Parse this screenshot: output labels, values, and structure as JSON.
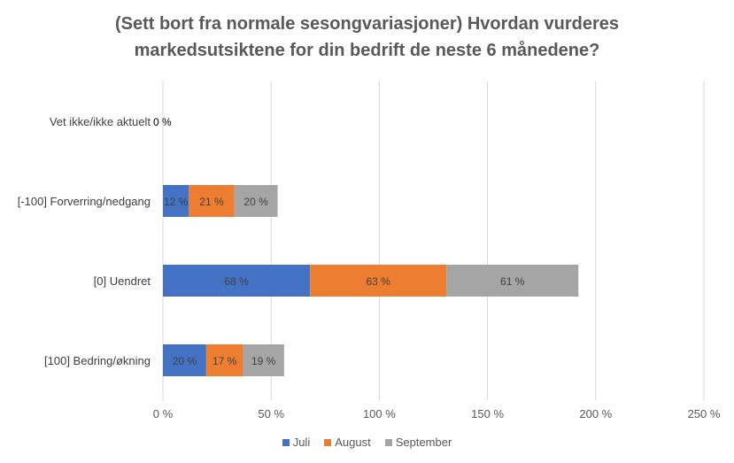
{
  "chart_data": {
    "type": "bar",
    "orientation": "horizontal",
    "stacked": true,
    "title_lines": [
      "(Sett bort fra normale sesongvariasjoner) Hvordan vurderes",
      "markedsutsiktene for din bedrift de neste 6 månedene?"
    ],
    "categories": [
      "Vet ikke/ikke aktuelt",
      "[-100] Forverring/nedgang",
      "[0] Uendret",
      "[100] Bedring/økning"
    ],
    "series": [
      {
        "name": "Juli",
        "color": "#4472C4",
        "values": [
          0,
          12,
          68,
          20
        ],
        "labels": [
          "0 %",
          "12 %",
          "68 %",
          "20 %"
        ]
      },
      {
        "name": "August",
        "color": "#ED7D31",
        "values": [
          0,
          21,
          63,
          17
        ],
        "labels": [
          "",
          "21 %",
          "63 %",
          "17 %"
        ]
      },
      {
        "name": "September",
        "color": "#A5A5A5",
        "values": [
          0,
          20,
          61,
          19
        ],
        "labels": [
          "",
          "20 %",
          "61 %",
          "19 %"
        ]
      }
    ],
    "xlim": [
      0,
      250
    ],
    "xticks": [
      0,
      50,
      100,
      150,
      200,
      250
    ],
    "xtick_labels": [
      "0 %",
      "50 %",
      "100 %",
      "150 %",
      "200 %",
      "250 %"
    ],
    "grid": true,
    "legend_position": "bottom"
  }
}
